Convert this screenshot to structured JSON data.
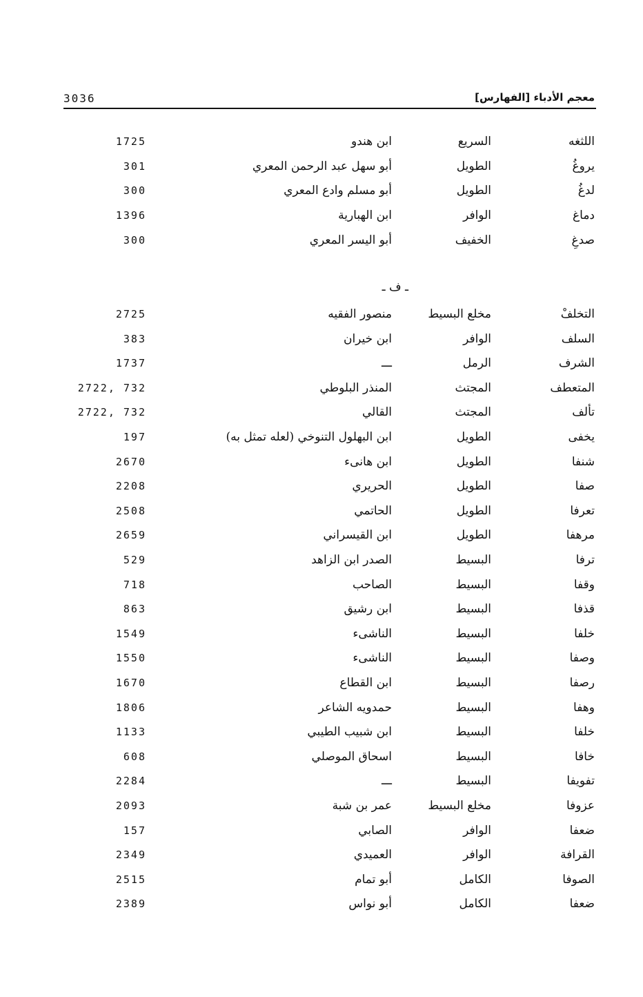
{
  "header": {
    "title": "معجم الأدباء [الفهارس]",
    "page_number": "3036"
  },
  "group1": [
    {
      "rhyme": "اللثغه",
      "meter": "السريع",
      "poet": "ابن هندو",
      "page": "1725"
    },
    {
      "rhyme": "يروغُ",
      "meter": "الطويل",
      "poet": "أبو سهل عبد الرحمن المعري",
      "page": "301"
    },
    {
      "rhyme": "لدغُ",
      "meter": "الطويل",
      "poet": "أبو مسلم وادع المعري",
      "page": "300"
    },
    {
      "rhyme": "دماغ",
      "meter": "الوافر",
      "poet": "ابن الهبارية",
      "page": "1396"
    },
    {
      "rhyme": "صدغِ",
      "meter": "الخفيف",
      "poet": "أبو اليسر المعري",
      "page": "300"
    }
  ],
  "section_heading": "ـ ف ـ",
  "group2": [
    {
      "rhyme": "التخلفْ",
      "meter": "مخلع البسيط",
      "poet": "منصور الفقيه",
      "page": "2725"
    },
    {
      "rhyme": "السلف",
      "meter": "الوافر",
      "poet": "ابن خيران",
      "page": "383"
    },
    {
      "rhyme": "الشرف",
      "meter": "الرمل",
      "poet": "ـــ",
      "page": "1737"
    },
    {
      "rhyme": "المتعطف",
      "meter": "المجتث",
      "poet": "المنذر البلوطي",
      "page": "2722, 732"
    },
    {
      "rhyme": "تألف",
      "meter": "المجتث",
      "poet": "القالي",
      "page": "2722, 732"
    },
    {
      "rhyme": "يخفى",
      "meter": "الطويل",
      "poet": "ابن البهلول التنوخي (لعله تمثل به)",
      "page": "197"
    },
    {
      "rhyme": "شنفا",
      "meter": "الطويل",
      "poet": "ابن هانىء",
      "page": "2670"
    },
    {
      "rhyme": "صفا",
      "meter": "الطويل",
      "poet": "الحريري",
      "page": "2208"
    },
    {
      "rhyme": "تعرفا",
      "meter": "الطويل",
      "poet": "الحاتمي",
      "page": "2508"
    },
    {
      "rhyme": "مرهفا",
      "meter": "الطويل",
      "poet": "ابن القيسراني",
      "page": "2659"
    },
    {
      "rhyme": "ترفا",
      "meter": "البسيط",
      "poet": "الصدر ابن الزاهد",
      "page": "529"
    },
    {
      "rhyme": "وقفا",
      "meter": "البسيط",
      "poet": "الصاحب",
      "page": "718"
    },
    {
      "rhyme": "قذفا",
      "meter": "البسيط",
      "poet": "ابن رشيق",
      "page": "863"
    },
    {
      "rhyme": "خلفا",
      "meter": "البسيط",
      "poet": "الناشىء",
      "page": "1549"
    },
    {
      "rhyme": "وصفا",
      "meter": "البسيط",
      "poet": "الناشىء",
      "page": "1550"
    },
    {
      "rhyme": "رصفا",
      "meter": "البسيط",
      "poet": "ابن القطاع",
      "page": "1670"
    },
    {
      "rhyme": "وهفا",
      "meter": "البسيط",
      "poet": "حمدويه الشاعر",
      "page": "1806"
    },
    {
      "rhyme": "خلفا",
      "meter": "البسيط",
      "poet": "ابن شبيب الطيبي",
      "page": "1133"
    },
    {
      "rhyme": "خافا",
      "meter": "البسيط",
      "poet": "اسحاق الموصلي",
      "page": "608"
    },
    {
      "rhyme": "تفويفا",
      "meter": "البسيط",
      "poet": "ـــ",
      "page": "2284"
    },
    {
      "rhyme": "عزوفا",
      "meter": "مخلع البسيط",
      "poet": "عمر بن شبة",
      "page": "2093"
    },
    {
      "rhyme": "ضعفا",
      "meter": "الوافر",
      "poet": "الصابي",
      "page": "157"
    },
    {
      "rhyme": "القرافة",
      "meter": "الوافر",
      "poet": "العميدي",
      "page": "2349"
    },
    {
      "rhyme": "الصوفا",
      "meter": "الكامل",
      "poet": "أبو تمام",
      "page": "2515"
    },
    {
      "rhyme": "ضعفا",
      "meter": "الكامل",
      "poet": "أبو نواس",
      "page": "2389"
    }
  ]
}
